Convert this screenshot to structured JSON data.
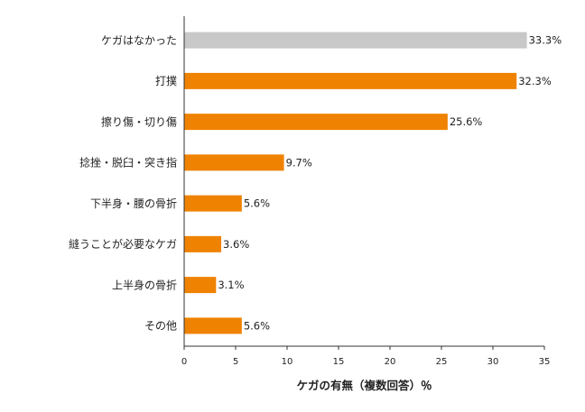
{
  "chart_data": {
    "type": "bar",
    "orientation": "horizontal",
    "categories": [
      "ケガはなかった",
      "打撲",
      "擦り傷・切り傷",
      "捻挫・脱臼・突き指",
      "下半身・腰の骨折",
      "縫うことが必要なケガ",
      "上半身の骨折",
      "その他"
    ],
    "values": [
      33.3,
      32.3,
      25.6,
      9.7,
      5.6,
      3.6,
      3.1,
      5.6
    ],
    "value_labels": [
      "33.3%",
      "32.3%",
      "25.6%",
      "9.7%",
      "5.6%",
      "3.6%",
      "3.1%",
      "5.6%"
    ],
    "bar_colors": [
      "#c8c8c8",
      "#ef8200",
      "#ef8200",
      "#ef8200",
      "#ef8200",
      "#ef8200",
      "#ef8200",
      "#ef8200"
    ],
    "xlabel": "ケガの有無（複数回答）％",
    "ylabel": "",
    "title": "",
    "xlim": [
      0,
      35
    ],
    "xticks": [
      "0",
      "5",
      "10",
      "15",
      "20",
      "25",
      "30",
      "35"
    ],
    "grid": false,
    "legend": "none"
  }
}
